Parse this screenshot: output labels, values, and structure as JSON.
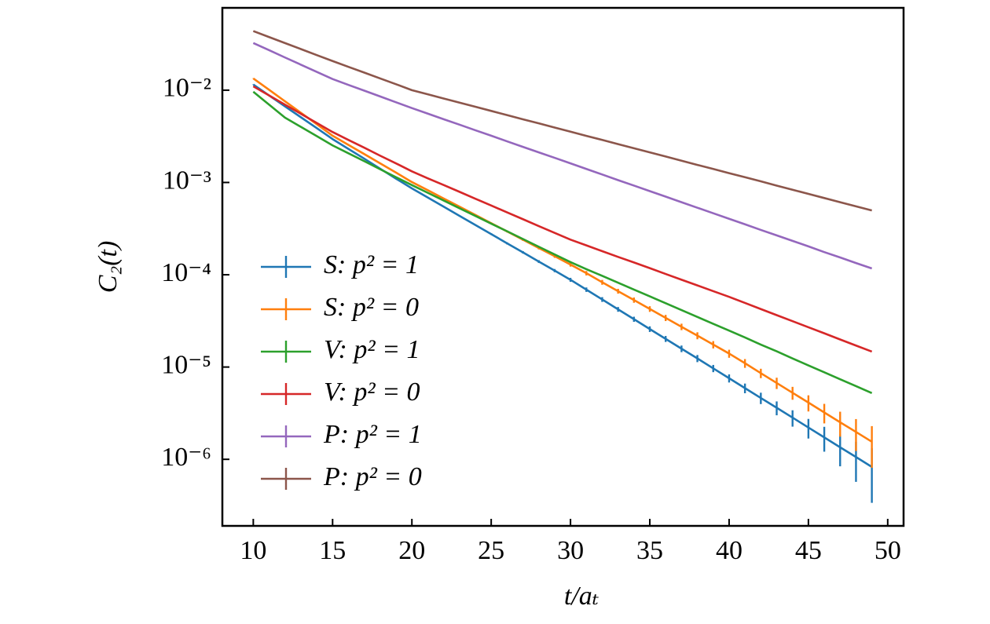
{
  "chart_data": {
    "type": "line",
    "yscale": "log",
    "legend": "lower left",
    "xlabel": "t/aₜ",
    "ylabel": "C₂(t)",
    "x": [
      10,
      11,
      12,
      13,
      14,
      15,
      16,
      17,
      18,
      19,
      20,
      21,
      22,
      23,
      24,
      25,
      26,
      27,
      28,
      29,
      30,
      31,
      32,
      33,
      34,
      35,
      36,
      37,
      38,
      39,
      40,
      41,
      42,
      43,
      44,
      45,
      46,
      47,
      48,
      49
    ],
    "xlim": [
      8.05,
      51
    ],
    "xticks": [
      10,
      15,
      20,
      25,
      30,
      35,
      40,
      45,
      50
    ],
    "ylim": [
      1.9e-07,
      0.078
    ],
    "yticks": [
      {
        "value": 0.01,
        "label": "10⁻²"
      },
      {
        "value": 0.001,
        "label": "10⁻³"
      },
      {
        "value": 0.0001,
        "label": "10⁻⁴"
      },
      {
        "value": 1e-05,
        "label": "10⁻⁵"
      },
      {
        "value": 1e-06,
        "label": "10⁻⁶"
      }
    ],
    "series": [
      {
        "name": "S: p² = 1",
        "color": "#1f77b4",
        "values": [
          0.0115,
          0.00876,
          0.00668,
          0.00509,
          0.00388,
          0.00295,
          0.00231,
          0.00181,
          0.00141,
          0.0011,
          0.000863,
          0.000687,
          0.000547,
          0.000435,
          0.000346,
          0.000276,
          0.000219,
          0.000175,
          0.000139,
          0.000111,
          8.82e-05,
          6.9e-05,
          5.4e-05,
          4.22e-05,
          3.3e-05,
          2.58e-05,
          2.02e-05,
          1.58e-05,
          1.24e-05,
          9.67e-06,
          7.56e-06,
          5.91e-06,
          4.62e-06,
          3.62e-06,
          2.83e-06,
          2.21e-06,
          1.73e-06,
          1.35e-06,
          1.06e-06,
          8.28e-07
        ],
        "errors": [
          5.8e-05,
          4.4e-05,
          3.3e-05,
          2.5e-05,
          1.9e-05,
          1.5e-05,
          1.2e-05,
          9e-06,
          7e-06,
          5.5e-06,
          8.6e-06,
          6.9e-06,
          5.5e-06,
          4.4e-06,
          3.5e-06,
          5.5e-06,
          5.5e-06,
          5.3e-06,
          4.9e-06,
          4.4e-06,
          4.4e-06,
          3.8e-06,
          3.2e-06,
          2.5e-06,
          2.1e-06,
          1.8e-06,
          1.5e-06,
          1.3e-06,
          1.1e-06,
          8.7e-07,
          7.6e-07,
          7.1e-07,
          6.5e-07,
          6.2e-07,
          5.7e-07,
          5.3e-07,
          5.2e-07,
          5.1e-07,
          4.9e-07,
          4.9e-07
        ]
      },
      {
        "name": "S: p² = 0",
        "color": "#ff7f0e",
        "values": [
          0.0134,
          0.0101,
          0.00757,
          0.00569,
          0.00428,
          0.00321,
          0.00255,
          0.00203,
          0.00161,
          0.00128,
          0.00101,
          0.000825,
          0.000671,
          0.000547,
          0.000445,
          0.000362,
          0.000295,
          0.00024,
          0.000195,
          0.000159,
          0.000129,
          0.000104,
          8.29e-05,
          6.64e-05,
          5.32e-05,
          4.26e-05,
          3.41e-05,
          2.73e-05,
          2.19e-05,
          1.75e-05,
          1.4e-05,
          1.1e-05,
          8.58e-06,
          6.72e-06,
          5.26e-06,
          4.12e-06,
          3.22e-06,
          2.52e-06,
          1.98e-06,
          1.55e-06
        ],
        "errors": [
          6.7e-05,
          5e-05,
          3.8e-05,
          2.8e-05,
          2.1e-05,
          1.6e-05,
          1.3e-05,
          1e-05,
          8.1e-06,
          6.4e-06,
          1.01e-05,
          8.3e-06,
          6.7e-06,
          5.5e-06,
          4.5e-06,
          7.2e-06,
          7.4e-06,
          7.2e-06,
          6.8e-06,
          6.4e-06,
          6.5e-06,
          5.7e-06,
          5e-06,
          4e-06,
          3.5e-06,
          3e-06,
          2.6e-06,
          2.2e-06,
          1.9e-06,
          1.6e-06,
          1.4e-06,
          1.2e-06,
          1e-06,
          9.4e-07,
          8.4e-07,
          8.2e-07,
          7.7e-07,
          7.6e-07,
          7.5e-07,
          7.4e-07
        ]
      },
      {
        "name": "V: p² = 1",
        "color": "#2ca02c",
        "values": [
          0.00961,
          0.00696,
          0.00504,
          0.004,
          0.00318,
          0.00252,
          0.00207,
          0.0017,
          0.00139,
          0.00114,
          0.000937,
          0.000773,
          0.000638,
          0.000526,
          0.000434,
          0.000358,
          0.000296,
          0.000244,
          0.000201,
          0.000166,
          0.000137,
          0.000115,
          9.73e-05,
          8.2e-05,
          6.91e-05,
          5.83e-05,
          4.91e-05,
          4.14e-05,
          3.49e-05,
          2.94e-05,
          2.48e-05,
          2.09e-05,
          1.75e-05,
          1.48e-05,
          1.24e-05,
          1.04e-05,
          8.78e-06,
          7.38e-06,
          6.21e-06,
          5.22e-06
        ]
      },
      {
        "name": "V: p² = 0",
        "color": "#d62728",
        "values": [
          0.011,
          0.00876,
          0.00697,
          0.00555,
          0.00442,
          0.00352,
          0.00289,
          0.00238,
          0.00195,
          0.00161,
          0.00132,
          0.00111,
          0.000939,
          0.000792,
          0.000667,
          0.000563,
          0.000474,
          0.0004,
          0.000337,
          0.000284,
          0.00024,
          0.000208,
          0.00018,
          0.000156,
          0.000136,
          0.000118,
          0.000102,
          8.83e-05,
          7.66e-05,
          6.64e-05,
          5.76e-05,
          4.95e-05,
          4.25e-05,
          3.65e-05,
          3.14e-05,
          2.7e-05,
          2.32e-05,
          1.99e-05,
          1.71e-05,
          1.47e-05
        ]
      },
      {
        "name": "P: p² = 1",
        "color": "#9467bd",
        "values": [
          0.0324,
          0.0271,
          0.0226,
          0.0189,
          0.0158,
          0.0132,
          0.0114,
          0.00988,
          0.00855,
          0.00739,
          0.0064,
          0.00557,
          0.00485,
          0.00423,
          0.00368,
          0.00321,
          0.00279,
          0.00243,
          0.00212,
          0.00185,
          0.00161,
          0.0014,
          0.00122,
          0.00106,
          0.000925,
          0.000806,
          0.000702,
          0.000611,
          0.000532,
          0.000464,
          0.000404,
          0.000352,
          0.000306,
          0.000267,
          0.000233,
          0.000203,
          0.000176,
          0.000154,
          0.000134,
          0.000117
        ]
      },
      {
        "name": "P: p² = 0",
        "color": "#8c564b",
        "values": [
          0.0437,
          0.0376,
          0.0324,
          0.0279,
          0.024,
          0.0207,
          0.0179,
          0.0155,
          0.0134,
          0.0116,
          0.01,
          0.00902,
          0.00813,
          0.00733,
          0.00661,
          0.00596,
          0.00537,
          0.00484,
          0.00437,
          0.00394,
          0.00355,
          0.0032,
          0.00289,
          0.0026,
          0.00235,
          0.00212,
          0.00191,
          0.00172,
          0.00155,
          0.0014,
          0.00126,
          0.00114,
          0.00103,
          0.000925,
          0.000834,
          0.000752,
          0.000678,
          0.000611,
          0.000551,
          0.000497
        ]
      }
    ]
  }
}
